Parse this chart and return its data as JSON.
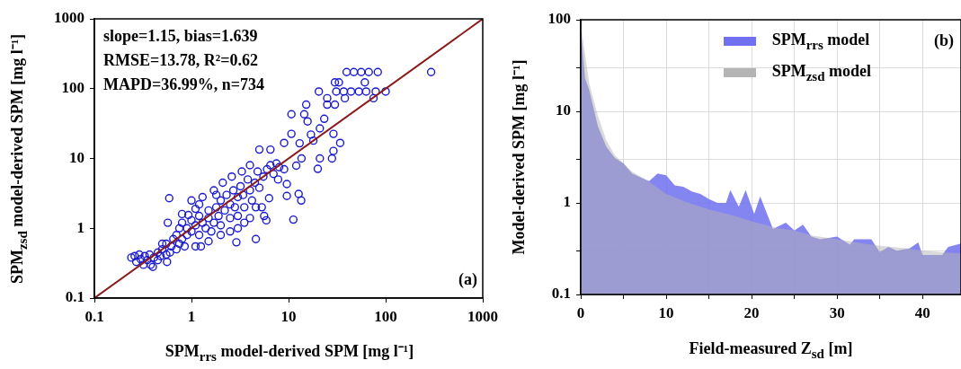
{
  "chart_data": [
    {
      "type": "scatter",
      "xlabel": "SPM$_{rrs}$ model-derived SPM [mg l⁻¹]",
      "ylabel": "SPM$_{zsd}$ model-derived SPM [mg l⁻¹]",
      "annotations": [
        "slope=1.15, bias=1.639",
        "RMSE=13.78, R²=0.62",
        "MAPD=36.99%, n=734",
        "(a)"
      ],
      "log": "xy",
      "xlim": [
        0.1,
        1000
      ],
      "xticks": [
        0.1,
        1,
        10,
        100,
        1000
      ],
      "ylim": [
        0.1,
        1000
      ],
      "yticks": [
        0.1,
        1,
        10,
        100,
        1000
      ],
      "series": [
        {
          "color": "#1a1ad0",
          "marker": "circle",
          "x": [
            39.6,
            47,
            56,
            67,
            83,
            294,
            30,
            33,
            61,
            20.5,
            31,
            37,
            44,
            53,
            63,
            79,
            100,
            25,
            38,
            75,
            25,
            30,
            15.2,
            10.7,
            14.5,
            15.7,
            23.3,
            21,
            10.7,
            29,
            17,
            18,
            34,
            13,
            9.0,
            6.5,
            5.0,
            29,
            13.6,
            21,
            28,
            12,
            20,
            7.8,
            9.6,
            9.6,
            12.7,
            13.5,
            11.2,
            6.3,
            5.3,
            4.6,
            5.6,
            5.9,
            4.6,
            2.9,
            0.59,
            0.24,
            0.26,
            0.27,
            0.29,
            0.3,
            0.32,
            0.33,
            0.35,
            0.37,
            0.38,
            0.4,
            0.41,
            0.45,
            0.48,
            0.5,
            0.55,
            0.6,
            0.62,
            0.7,
            0.75,
            0.8,
            0.85,
            0.9,
            0.7,
            0.65,
            0.55,
            0.75,
            0.8,
            0.9,
            1.0,
            1.0,
            1.1,
            1.2,
            1.2,
            1.3,
            1.4,
            1.5,
            1.5,
            1.6,
            1.7,
            1.8,
            1.9,
            2.0,
            2.0,
            2.2,
            2.3,
            2.5,
            2.5,
            2.7,
            2.8,
            3.0,
            3.0,
            3.2,
            3.4,
            3.5,
            3.8,
            4.0,
            4.2,
            4.5,
            4.8,
            5.0,
            5.5,
            6,
            6.5,
            7,
            7.5,
            8,
            9,
            1,
            0.8,
            1.3,
            1.7,
            2.1,
            2.6,
            3.3,
            4,
            1.25,
            1.1,
            1.5,
            2.0,
            2.5,
            3,
            3.5,
            4,
            0.5,
            0.45,
            0.56,
            0.57,
            0.93,
            1.2,
            1.8,
            1.1
          ],
          "values": [
            173,
            173,
            173,
            173,
            173,
            173,
            123,
            123,
            123,
            91,
            91,
            91,
            91,
            91,
            91,
            91,
            91,
            73,
            73,
            73,
            59,
            59,
            59,
            43,
            43,
            34,
            37,
            27,
            22.5,
            22.5,
            22,
            18,
            16.7,
            16.5,
            16.7,
            13.4,
            13.4,
            12.8,
            10,
            10,
            10,
            7.9,
            7.1,
            5.0,
            4.3,
            2.9,
            3.1,
            2.5,
            1.33,
            2.7,
            2.0,
            2.0,
            1.5,
            1.3,
            0.7,
            0.63,
            2.7,
            0.38,
            0.4,
            0.33,
            0.42,
            0.36,
            0.3,
            0.4,
            0.35,
            0.42,
            0.3,
            0.28,
            0.38,
            0.45,
            0.4,
            0.5,
            0.42,
            0.45,
            0.55,
            0.5,
            0.6,
            0.7,
            0.55,
            0.8,
            0.8,
            0.7,
            0.6,
            1.0,
            1.2,
            1.0,
            0.9,
            1.3,
            1.1,
            0.8,
            1.5,
            1.2,
            1.0,
            1.8,
            1.4,
            0.9,
            1.2,
            2.0,
            1.5,
            1.1,
            2.5,
            1.8,
            3.0,
            2.2,
            1.4,
            3.5,
            2.0,
            2.8,
            1.5,
            4.0,
            3.0,
            2.0,
            5.0,
            3.5,
            2.5,
            4.5,
            6.5,
            3.8,
            5.5,
            7,
            8,
            6,
            8.5,
            7.5,
            7,
            2.5,
            1.6,
            2.8,
            3.5,
            4.5,
            5.5,
            6.5,
            8,
            0.55,
            0.55,
            0.65,
            0.8,
            0.9,
            1.0,
            1.2,
            1.4,
            0.6,
            0.35,
            0.33,
            1.2,
            1.55,
            2.2,
            3.0,
            1.9
          ]
        },
        {
          "type": "line",
          "color": "#8b1a1a",
          "x": [
            0.1,
            1000
          ],
          "values": [
            0.1,
            1000
          ]
        }
      ]
    },
    {
      "type": "area",
      "xlabel": "Field-measured Z$_{sd}$ [m]",
      "ylabel": "Model-derived SPM [mg l⁻¹]",
      "annotations": [
        "(b)"
      ],
      "log": true,
      "grid": true,
      "legend": "top right",
      "xlim": [
        0,
        44.5
      ],
      "xticks": [
        0,
        {
          "value": 5,
          "label": null
        },
        10,
        {
          "value": 15,
          "label": null
        },
        20,
        {
          "value": 25,
          "label": null
        },
        30,
        {
          "value": 35,
          "label": null
        },
        40
      ],
      "ylim": [
        0.1,
        100
      ],
      "yticks": [
        0.1,
        {
          "value": 0.3,
          "label": null
        },
        1,
        {
          "value": 3,
          "label": null
        },
        10,
        {
          "value": 30,
          "label": null
        },
        100
      ],
      "series": [
        {
          "name": "SPM$_{rrs}$ model",
          "color": "#7070f0",
          "x": [
            0,
            0.5,
            1,
            2,
            3,
            4,
            5,
            6,
            7,
            8,
            9,
            10,
            11,
            12,
            13,
            14,
            15,
            16,
            17,
            17.5,
            18.5,
            19.3,
            20.3,
            21,
            22.5,
            24,
            25,
            26,
            27,
            28,
            30,
            31.5,
            32,
            34,
            35,
            36,
            37,
            38.5,
            39.5,
            40,
            41.5,
            42.3,
            43,
            44.5
          ],
          "values": [
            81,
            23,
            17,
            6.9,
            4.1,
            3.1,
            2.7,
            2.1,
            1.9,
            1.73,
            2.1,
            2.0,
            1.55,
            1.5,
            1.33,
            1.25,
            1.1,
            1.0,
            1.0,
            1.38,
            0.91,
            1.38,
            0.76,
            1.18,
            0.52,
            0.61,
            0.5,
            0.58,
            0.43,
            0.4,
            0.43,
            0.35,
            0.4,
            0.4,
            0.29,
            0.33,
            0.3,
            0.32,
            0.37,
            0.27,
            0.27,
            0.27,
            0.33,
            0.36
          ]
        },
        {
          "name": "SPM$_{zsd}$ model",
          "color": "#b4b4b4",
          "x": [
            0,
            1,
            2,
            3,
            4,
            5,
            6,
            8,
            10,
            12,
            15,
            18,
            20,
            23,
            25,
            27,
            30,
            33,
            35,
            38,
            40,
            42,
            44.5
          ],
          "values": [
            90,
            20,
            9,
            4.8,
            3.3,
            2.7,
            2.2,
            1.7,
            1.25,
            1.05,
            0.85,
            0.72,
            0.63,
            0.53,
            0.5,
            0.44,
            0.4,
            0.36,
            0.34,
            0.32,
            0.3,
            0.29,
            0.28
          ]
        }
      ]
    }
  ]
}
